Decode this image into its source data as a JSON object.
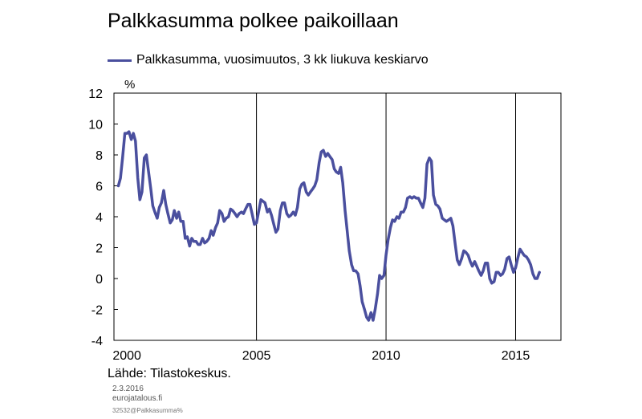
{
  "title": "Palkkasumma polkee paikoillaan",
  "legend_label": "Palkkasumma, vuosimuutos, 3 kk  liukuva keskiarvo",
  "unit_label": "%",
  "source": "Lähde: Tilastokeskus.",
  "date": "2.3.2016",
  "site": "eurojatalous.fi",
  "code": "32532@Palkkasumma%",
  "colors": {
    "series": "#4a4f9e",
    "grid": "#000000",
    "frame": "#000000"
  },
  "chart_data": {
    "type": "line",
    "title": "",
    "xlabel": "",
    "ylabel": "%",
    "xlim": [
      1999.5,
      2016.75
    ],
    "ylim": [
      -4,
      12
    ],
    "y_ticks": [
      -4,
      -2,
      0,
      2,
      4,
      6,
      8,
      10,
      12
    ],
    "x_tick_labels": [
      {
        "value": 2000,
        "label": "2000"
      },
      {
        "value": 2005,
        "label": "2005"
      },
      {
        "value": 2010,
        "label": "2010"
      },
      {
        "value": 2015,
        "label": "2015"
      }
    ],
    "vertical_grid": [
      2005,
      2010,
      2015
    ],
    "grid": false,
    "legend": "top-left",
    "series": [
      {
        "name": "Palkkasumma, vuosimuutos, 3 kk  liukuva keskiarvo",
        "color": "#4a4f9e",
        "x": [
          1999.67,
          1999.75,
          1999.83,
          1999.92,
          2000.0,
          2000.08,
          2000.17,
          2000.25,
          2000.33,
          2000.42,
          2000.5,
          2000.58,
          2000.67,
          2000.75,
          2000.83,
          2000.92,
          2001.0,
          2001.08,
          2001.17,
          2001.25,
          2001.33,
          2001.42,
          2001.5,
          2001.58,
          2001.67,
          2001.75,
          2001.83,
          2001.92,
          2002.0,
          2002.08,
          2002.17,
          2002.25,
          2002.33,
          2002.42,
          2002.5,
          2002.58,
          2002.67,
          2002.75,
          2002.83,
          2002.92,
          2003.0,
          2003.08,
          2003.17,
          2003.25,
          2003.33,
          2003.42,
          2003.5,
          2003.58,
          2003.67,
          2003.75,
          2003.83,
          2003.92,
          2004.0,
          2004.08,
          2004.17,
          2004.25,
          2004.33,
          2004.42,
          2004.5,
          2004.58,
          2004.67,
          2004.75,
          2004.83,
          2004.92,
          2005.0,
          2005.08,
          2005.17,
          2005.25,
          2005.33,
          2005.42,
          2005.5,
          2005.58,
          2005.67,
          2005.75,
          2005.83,
          2005.92,
          2006.0,
          2006.08,
          2006.17,
          2006.25,
          2006.33,
          2006.42,
          2006.5,
          2006.58,
          2006.67,
          2006.75,
          2006.83,
          2006.92,
          2007.0,
          2007.08,
          2007.17,
          2007.25,
          2007.33,
          2007.42,
          2007.5,
          2007.58,
          2007.67,
          2007.75,
          2007.83,
          2007.92,
          2008.0,
          2008.08,
          2008.17,
          2008.25,
          2008.33,
          2008.42,
          2008.5,
          2008.58,
          2008.67,
          2008.75,
          2008.83,
          2008.92,
          2009.0,
          2009.08,
          2009.17,
          2009.25,
          2009.33,
          2009.42,
          2009.5,
          2009.58,
          2009.67,
          2009.75,
          2009.83,
          2009.92,
          2010.0,
          2010.08,
          2010.17,
          2010.25,
          2010.33,
          2010.42,
          2010.5,
          2010.58,
          2010.67,
          2010.75,
          2010.83,
          2010.92,
          2011.0,
          2011.08,
          2011.17,
          2011.25,
          2011.33,
          2011.42,
          2011.5,
          2011.58,
          2011.67,
          2011.75,
          2011.83,
          2011.92,
          2012.0,
          2012.08,
          2012.17,
          2012.25,
          2012.33,
          2012.42,
          2012.5,
          2012.58,
          2012.67,
          2012.75,
          2012.83,
          2012.92,
          2013.0,
          2013.08,
          2013.17,
          2013.25,
          2013.33,
          2013.42,
          2013.5,
          2013.58,
          2013.67,
          2013.75,
          2013.83,
          2013.92,
          2014.0,
          2014.08,
          2014.17,
          2014.25,
          2014.33,
          2014.42,
          2014.5,
          2014.58,
          2014.67,
          2014.75,
          2014.83,
          2014.92,
          2015.0,
          2015.08,
          2015.17,
          2015.25,
          2015.33,
          2015.42,
          2015.5,
          2015.58,
          2015.67,
          2015.75,
          2015.83,
          2015.92
        ],
        "y": [
          6.0,
          6.5,
          7.8,
          9.4,
          9.4,
          9.5,
          9.0,
          9.4,
          8.9,
          6.5,
          5.1,
          5.6,
          7.8,
          8.0,
          7.0,
          5.8,
          4.7,
          4.3,
          3.9,
          4.6,
          4.9,
          5.7,
          4.8,
          4.2,
          3.6,
          3.8,
          4.4,
          3.9,
          4.3,
          3.7,
          3.7,
          2.6,
          2.7,
          2.1,
          2.6,
          2.4,
          2.4,
          2.2,
          2.2,
          2.6,
          2.3,
          2.4,
          2.6,
          3.1,
          2.8,
          3.3,
          3.6,
          4.4,
          4.2,
          3.7,
          3.9,
          4.0,
          4.5,
          4.4,
          4.2,
          4.0,
          4.2,
          4.3,
          4.2,
          4.5,
          4.8,
          4.8,
          4.2,
          3.5,
          3.6,
          4.3,
          5.1,
          5.0,
          4.9,
          4.3,
          4.5,
          4.1,
          3.5,
          3.0,
          3.2,
          4.4,
          4.9,
          4.9,
          4.2,
          4.0,
          4.1,
          4.3,
          4.1,
          4.6,
          5.8,
          6.1,
          6.2,
          5.6,
          5.4,
          5.6,
          5.8,
          6.0,
          6.4,
          7.5,
          8.2,
          8.3,
          7.9,
          8.1,
          7.9,
          7.7,
          7.1,
          6.9,
          6.8,
          7.2,
          6.2,
          4.4,
          3.1,
          1.8,
          0.9,
          0.5,
          0.5,
          0.3,
          -0.5,
          -1.5,
          -2.0,
          -2.5,
          -2.7,
          -2.2,
          -2.7,
          -2.0,
          -1.0,
          0.2,
          0.0,
          0.2,
          1.5,
          2.5,
          3.3,
          3.8,
          3.7,
          4.0,
          3.9,
          4.3,
          4.3,
          4.6,
          5.2,
          5.3,
          5.2,
          5.3,
          5.2,
          5.2,
          4.9,
          4.6,
          5.2,
          7.4,
          7.8,
          7.6,
          5.4,
          4.8,
          4.7,
          4.5,
          3.9,
          3.8,
          3.7,
          3.8,
          3.9,
          3.4,
          2.2,
          1.2,
          0.9,
          1.3,
          1.8,
          1.7,
          1.5,
          1.1,
          0.8,
          1.1,
          0.8,
          0.5,
          0.2,
          0.5,
          1.0,
          1.0,
          0.0,
          -0.3,
          -0.2,
          0.4,
          0.4,
          0.2,
          0.3,
          0.6,
          1.3,
          1.4,
          0.9,
          0.4,
          0.7,
          1.3,
          1.9,
          1.7,
          1.5,
          1.4,
          1.2,
          0.9,
          0.3,
          0.0,
          0.0,
          0.4
        ]
      }
    ]
  }
}
